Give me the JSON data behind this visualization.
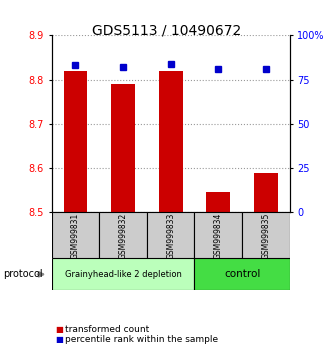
{
  "title": "GDS5113 / 10490672",
  "samples": [
    "GSM999831",
    "GSM999832",
    "GSM999833",
    "GSM999834",
    "GSM999835"
  ],
  "transformed_counts": [
    8.82,
    8.79,
    8.82,
    8.545,
    8.59
  ],
  "percentile_ranks": [
    83,
    82,
    84,
    81,
    81
  ],
  "ylim_left": [
    8.5,
    8.9
  ],
  "ylim_right": [
    0,
    100
  ],
  "yticks_left": [
    8.5,
    8.6,
    8.7,
    8.8,
    8.9
  ],
  "yticks_right": [
    0,
    25,
    50,
    75,
    100
  ],
  "ytick_labels_right": [
    "0",
    "25",
    "50",
    "75",
    "100%"
  ],
  "bar_color": "#cc0000",
  "dot_color": "#0000cc",
  "group1_samples": [
    0,
    1,
    2
  ],
  "group2_samples": [
    3,
    4
  ],
  "group1_label": "Grainyhead-like 2 depletion",
  "group2_label": "control",
  "group1_color": "#bbffbb",
  "group2_color": "#44dd44",
  "group_box_color": "#cccccc",
  "protocol_label": "protocol",
  "legend_red_label": "transformed count",
  "legend_blue_label": "percentile rank within the sample",
  "bar_bottom": 8.5,
  "dotted_line_color": "#999999",
  "title_fontsize": 10,
  "tick_fontsize": 7,
  "sample_fontsize": 5.5,
  "group_fontsize": 6,
  "legend_fontsize": 6.5
}
